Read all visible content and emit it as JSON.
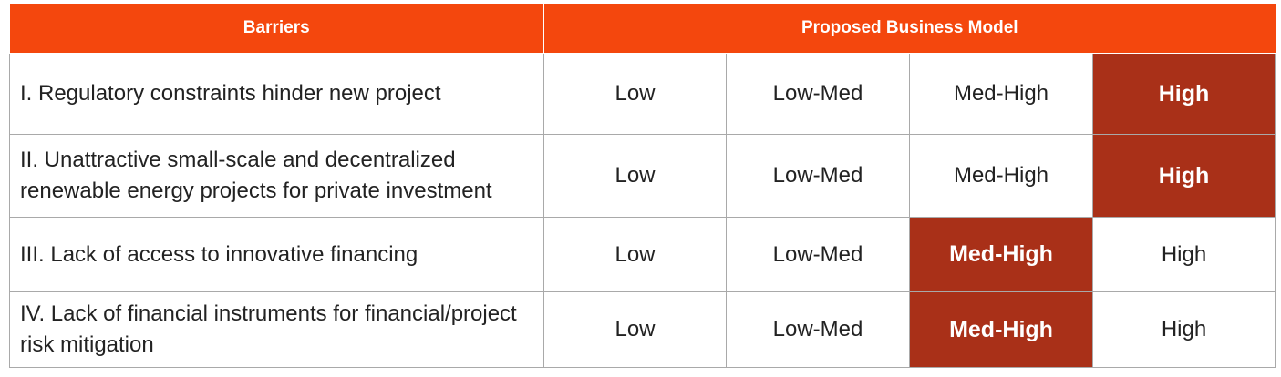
{
  "header": {
    "barriers_label": "Barriers",
    "model_label": "Proposed Business Model"
  },
  "rows": [
    {
      "barrier": "I. Regulatory constraints hinder new project",
      "levels": [
        "Low",
        "Low-Med",
        "Med-High",
        "High"
      ],
      "selected": "High"
    },
    {
      "barrier": "II. Unattractive small-scale and decentralized renewable energy projects for private investment",
      "levels": [
        "Low",
        "Low-Med",
        "Med-High",
        "High"
      ],
      "selected": "High"
    },
    {
      "barrier": "III. Lack of access to innovative financing",
      "levels": [
        "Low",
        "Low-Med",
        "Med-High",
        "High"
      ],
      "selected": "Med-High"
    },
    {
      "barrier": "IV. Lack of financial instruments for financial/project risk mitigation",
      "levels": [
        "Low",
        "Low-Med",
        "Med-High",
        "High"
      ],
      "selected": "Med-High"
    }
  ],
  "colors": {
    "header_bg": "#f4470d",
    "highlight_bg": "#a93018",
    "border": "#a9a9a9"
  }
}
